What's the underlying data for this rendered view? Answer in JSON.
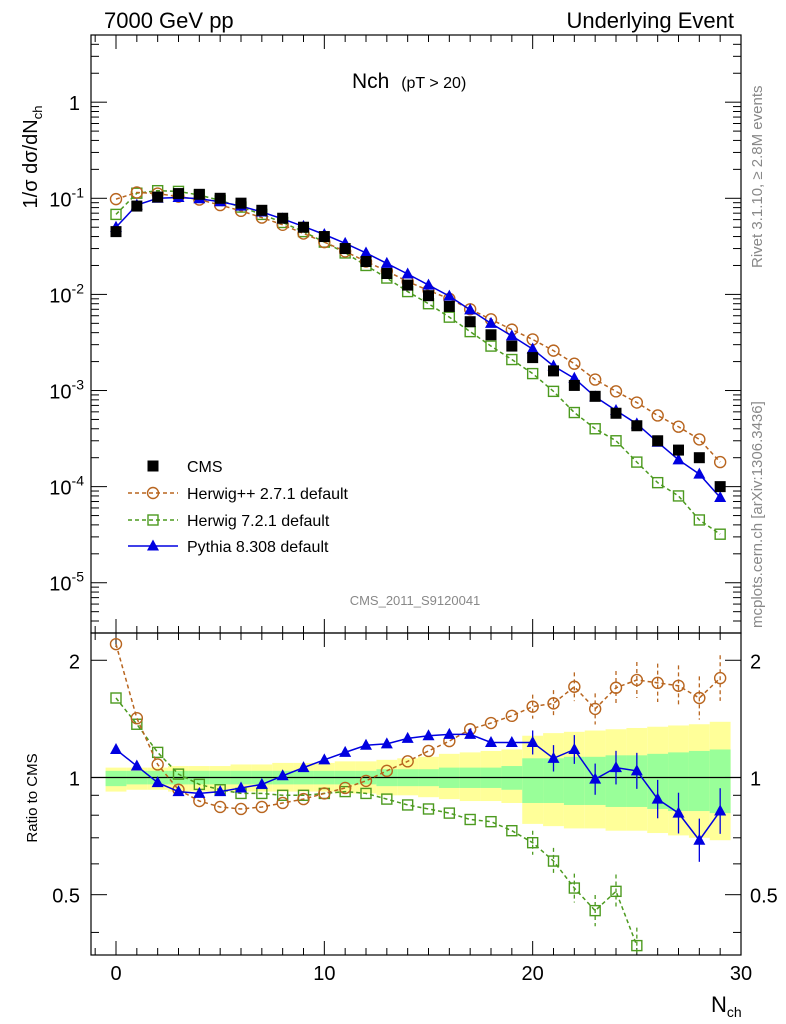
{
  "header": {
    "left": "7000 GeV pp",
    "right": "Underlying Event"
  },
  "side_labels": {
    "rivet": "Rivet 3.1.10, ≥ 2.8M events",
    "mcplots": "mcplots.cern.ch [arXiv:1306.3436]"
  },
  "main_panel": {
    "title": "Nch",
    "title_sub": "(pT > 20)",
    "ylabel": "1/σ dσ/dN",
    "ylabel_sub": "ch",
    "watermark": "CMS_2011_S9120041",
    "yticks": [
      {
        "base": "10",
        "exp": "-5",
        "value": 1e-05
      },
      {
        "base": "10",
        "exp": "-4",
        "value": 0.0001
      },
      {
        "base": "10",
        "exp": "-3",
        "value": 0.001
      },
      {
        "base": "10",
        "exp": "-2",
        "value": 0.01
      },
      {
        "base": "10",
        "exp": "-1",
        "value": 0.1
      },
      {
        "base": "1",
        "exp": "",
        "value": 1
      }
    ]
  },
  "ratio_panel": {
    "ylabel": "Ratio to CMS",
    "yticks": [
      "0.5",
      "1",
      "2"
    ]
  },
  "xaxis": {
    "label": "N",
    "label_sub": "ch",
    "ticks": [
      "0",
      "10",
      "20",
      "30"
    ]
  },
  "legend": [
    {
      "name": "CMS",
      "marker": "filled-square"
    },
    {
      "name": "Herwig++ 2.7.1 default",
      "marker": "open-circle"
    },
    {
      "name": "Herwig 7.2.1 default",
      "marker": "open-square"
    },
    {
      "name": "Pythia 8.308 default",
      "marker": "filled-triangle"
    }
  ],
  "colors": {
    "cms": "#000000",
    "herwigpp": "#b8651f",
    "herwig7": "#4c9a1f",
    "pythia": "#0000e0",
    "band_yellow": "#ffff99",
    "band_green": "#99ff99"
  },
  "chart_data": {
    "type": "scatter",
    "x": [
      0,
      1,
      2,
      3,
      4,
      5,
      6,
      7,
      8,
      9,
      10,
      11,
      12,
      13,
      14,
      15,
      16,
      17,
      18,
      19,
      20,
      21,
      22,
      23,
      24,
      25,
      26,
      27,
      28,
      29
    ],
    "xlim": [
      -1.2,
      30
    ],
    "ylim_main": [
      3e-06,
      5
    ],
    "ylog": true,
    "ylim_ratio": [
      0.35,
      2.35
    ],
    "ratio_ylog": true,
    "series": [
      {
        "name": "CMS",
        "values": [
          0.045,
          0.083,
          0.103,
          0.112,
          0.11,
          0.1,
          0.089,
          0.075,
          0.062,
          0.05,
          0.04,
          0.03,
          0.022,
          0.0165,
          0.0125,
          0.0097,
          0.0075,
          0.0052,
          0.0038,
          0.0029,
          0.0022,
          0.0016,
          0.00113,
          0.00087,
          0.00058,
          0.00043,
          0.0003,
          0.00024,
          0.0002,
          0.0001
        ]
      },
      {
        "name": "Herwig++ 2.7.1 default",
        "values": [
          0.098,
          0.115,
          0.112,
          0.104,
          0.097,
          0.085,
          0.074,
          0.063,
          0.053,
          0.043,
          0.035,
          0.028,
          0.022,
          0.0175,
          0.0136,
          0.011,
          0.009,
          0.007,
          0.0055,
          0.0043,
          0.0034,
          0.0026,
          0.0019,
          0.0013,
          0.00098,
          0.00075,
          0.00055,
          0.00042,
          0.00031,
          0.00018
        ],
        "ratio": [
          2.2,
          1.42,
          1.08,
          0.93,
          0.87,
          0.84,
          0.83,
          0.84,
          0.86,
          0.88,
          0.91,
          0.94,
          0.98,
          1.04,
          1.1,
          1.17,
          1.24,
          1.33,
          1.38,
          1.44,
          1.52,
          1.55,
          1.71,
          1.5,
          1.7,
          1.78,
          1.75,
          1.72,
          1.6,
          1.8
        ]
      },
      {
        "name": "Herwig 7.2.1 default",
        "values": [
          0.068,
          0.113,
          0.12,
          0.118,
          0.108,
          0.095,
          0.081,
          0.068,
          0.056,
          0.045,
          0.035,
          0.027,
          0.02,
          0.0148,
          0.0107,
          0.008,
          0.0058,
          0.0041,
          0.0029,
          0.0021,
          0.0015,
          0.00098,
          0.00059,
          0.0004,
          0.0003,
          0.00018,
          0.00011,
          8e-05,
          4.5e-05,
          3.2e-05
        ],
        "ratio": [
          1.6,
          1.37,
          1.16,
          1.02,
          0.96,
          0.93,
          0.91,
          0.91,
          0.9,
          0.9,
          0.91,
          0.92,
          0.91,
          0.88,
          0.85,
          0.83,
          0.81,
          0.78,
          0.77,
          0.73,
          0.68,
          0.61,
          0.52,
          0.455,
          0.51,
          0.37
        ]
      },
      {
        "name": "Pythia 8.308 default",
        "values": [
          0.05,
          0.085,
          0.1,
          0.102,
          0.099,
          0.092,
          0.083,
          0.072,
          0.061,
          0.051,
          0.042,
          0.034,
          0.027,
          0.021,
          0.0163,
          0.0125,
          0.0096,
          0.0069,
          0.005,
          0.0037,
          0.0027,
          0.0018,
          0.00134,
          0.00086,
          0.00062,
          0.00045,
          0.00029,
          0.00019,
          0.000135,
          7.7e-05
        ],
        "ratio": [
          1.18,
          1.07,
          0.97,
          0.92,
          0.91,
          0.92,
          0.94,
          0.96,
          1.01,
          1.06,
          1.11,
          1.16,
          1.21,
          1.22,
          1.26,
          1.28,
          1.29,
          1.29,
          1.23,
          1.23,
          1.23,
          1.12,
          1.18,
          0.99,
          1.06,
          1.04,
          0.88,
          0.81,
          0.69,
          0.82
        ]
      }
    ],
    "band_inner": [
      [
        0.95,
        1.04
      ],
      [
        0.96,
        1.04
      ],
      [
        0.96,
        1.04
      ],
      [
        0.96,
        1.04
      ],
      [
        0.96,
        1.04
      ],
      [
        0.96,
        1.04
      ],
      [
        0.96,
        1.04
      ],
      [
        0.96,
        1.04
      ],
      [
        0.96,
        1.04
      ],
      [
        0.96,
        1.04
      ],
      [
        0.96,
        1.04
      ],
      [
        0.96,
        1.04
      ],
      [
        0.96,
        1.04
      ],
      [
        0.95,
        1.05
      ],
      [
        0.95,
        1.05
      ],
      [
        0.95,
        1.05
      ],
      [
        0.94,
        1.06
      ],
      [
        0.94,
        1.06
      ],
      [
        0.94,
        1.06
      ],
      [
        0.93,
        1.07
      ],
      [
        0.86,
        1.12
      ],
      [
        0.86,
        1.12
      ],
      [
        0.85,
        1.13
      ],
      [
        0.85,
        1.13
      ],
      [
        0.84,
        1.14
      ],
      [
        0.84,
        1.14
      ],
      [
        0.83,
        1.15
      ],
      [
        0.82,
        1.16
      ],
      [
        0.82,
        1.17
      ],
      [
        0.81,
        1.18
      ]
    ],
    "band_outer": [
      [
        0.92,
        1.06
      ],
      [
        0.93,
        1.06
      ],
      [
        0.93,
        1.06
      ],
      [
        0.92,
        1.07
      ],
      [
        0.92,
        1.07
      ],
      [
        0.92,
        1.07
      ],
      [
        0.92,
        1.08
      ],
      [
        0.92,
        1.08
      ],
      [
        0.92,
        1.09
      ],
      [
        0.92,
        1.09
      ],
      [
        0.92,
        1.09
      ],
      [
        0.91,
        1.1
      ],
      [
        0.91,
        1.1
      ],
      [
        0.9,
        1.11
      ],
      [
        0.9,
        1.12
      ],
      [
        0.89,
        1.13
      ],
      [
        0.88,
        1.15
      ],
      [
        0.87,
        1.16
      ],
      [
        0.87,
        1.17
      ],
      [
        0.86,
        1.18
      ],
      [
        0.76,
        1.28
      ],
      [
        0.75,
        1.3
      ],
      [
        0.74,
        1.31
      ],
      [
        0.74,
        1.32
      ],
      [
        0.73,
        1.33
      ],
      [
        0.73,
        1.34
      ],
      [
        0.72,
        1.35
      ],
      [
        0.71,
        1.36
      ],
      [
        0.7,
        1.37
      ],
      [
        0.69,
        1.39
      ]
    ]
  }
}
